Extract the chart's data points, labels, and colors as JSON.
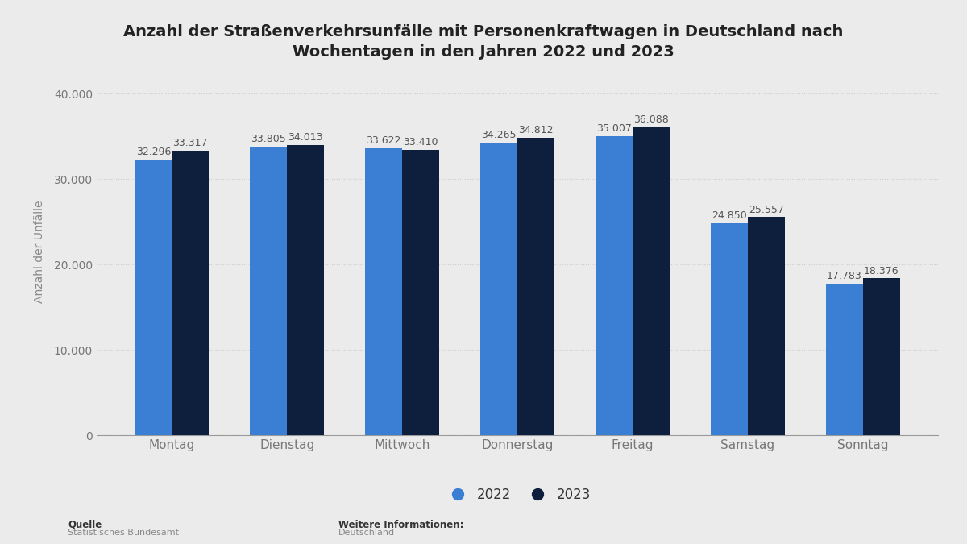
{
  "title": "Anzahl der Straßenverkehrsunfälle mit Personenkraftwagen in Deutschland nach\nWochentagen in den Jahren 2022 und 2023",
  "categories": [
    "Montag",
    "Dienstag",
    "Mittwoch",
    "Donnerstag",
    "Freitag",
    "Samstag",
    "Sonntag"
  ],
  "values_2022": [
    32296,
    33805,
    33622,
    34265,
    35007,
    24850,
    17783
  ],
  "values_2023": [
    33317,
    34013,
    33410,
    34812,
    36088,
    25557,
    18376
  ],
  "labels_2022": [
    "32.296",
    "33.805",
    "33.622",
    "34.265",
    "35.007",
    "24.850",
    "17.783"
  ],
  "labels_2023": [
    "33.317",
    "34.013",
    "33.410",
    "34.812",
    "36.088",
    "25.557",
    "18.376"
  ],
  "color_2022": "#3a7fd4",
  "color_2023": "#0d1f3c",
  "ylabel": "Anzahl der Unfälle",
  "ylim": [
    0,
    43000
  ],
  "yticks": [
    0,
    10000,
    20000,
    30000,
    40000
  ],
  "ytick_labels": [
    "0",
    "10.000",
    "20.000",
    "30.000",
    "40.000"
  ],
  "legend_2022": "2022",
  "legend_2023": "2023",
  "background_color": "#ebebeb",
  "plot_bg_color": "#ebebeb",
  "source_label": "Quelle",
  "source_text": "Statistisches Bundesamt",
  "further_info_label": "Weitere Informationen:",
  "further_info_text": "Deutschland",
  "title_fontsize": 14,
  "label_fontsize": 9,
  "axis_fontsize": 10,
  "bar_width": 0.32
}
